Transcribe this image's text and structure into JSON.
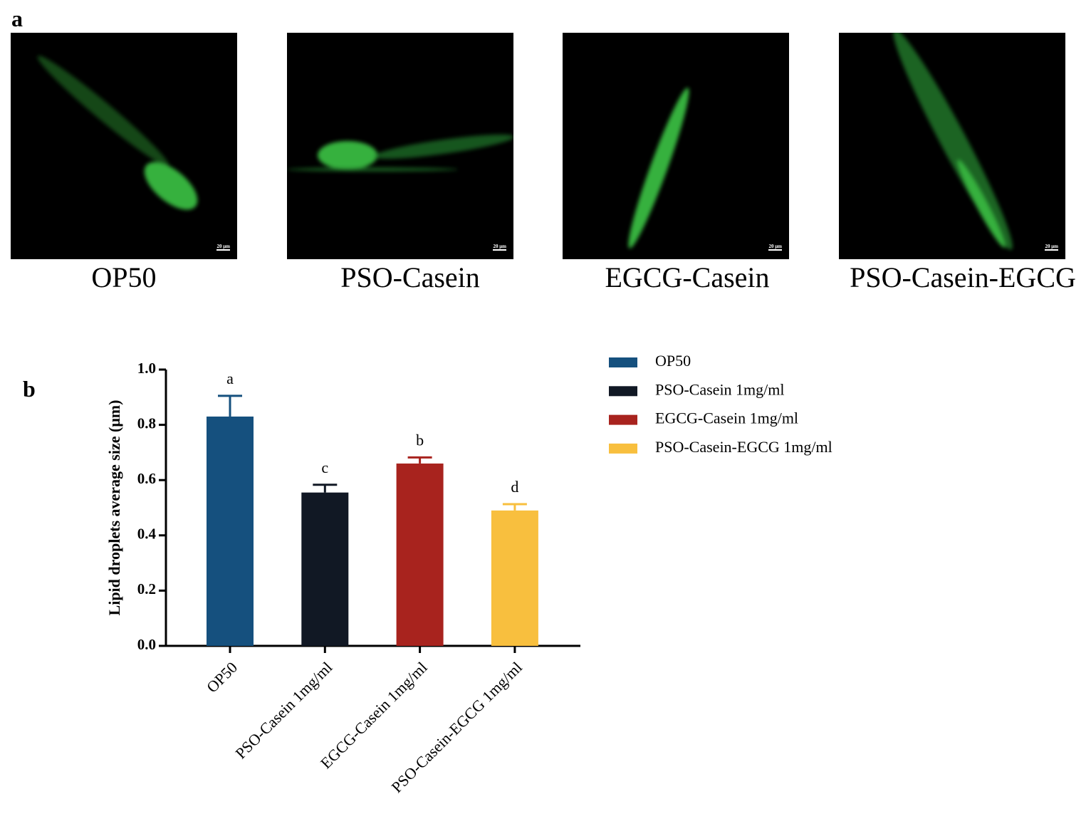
{
  "panel_a": {
    "label": "a",
    "scale_bar": "20 μm",
    "captions": [
      "OP50",
      "PSO-Casein",
      "EGCG-Casein",
      "PSO-Casein-EGCG"
    ]
  },
  "panel_b_label": "b",
  "chart_data": {
    "type": "bar",
    "ylabel": "Lipid droplets average size (μm)",
    "categories": [
      "OP50",
      "PSO-Casein 1mg/ml",
      "EGCG-Casein 1mg/ml",
      "PSO-Casein-EGCG 1mg/ml"
    ],
    "values": [
      0.83,
      0.555,
      0.66,
      0.49
    ],
    "errors": [
      0.075,
      0.028,
      0.022,
      0.023
    ],
    "letters": [
      "a",
      "c",
      "b",
      "d"
    ],
    "colors": [
      "#15507e",
      "#111824",
      "#a8231e",
      "#f8bf3e"
    ],
    "ylim": [
      0,
      1
    ],
    "yticks": [
      {
        "value": 0,
        "label": "0.0"
      },
      0.2,
      0.4,
      0.6,
      0.8,
      {
        "value": 1,
        "label": "1.0"
      }
    ],
    "legend": "right"
  }
}
